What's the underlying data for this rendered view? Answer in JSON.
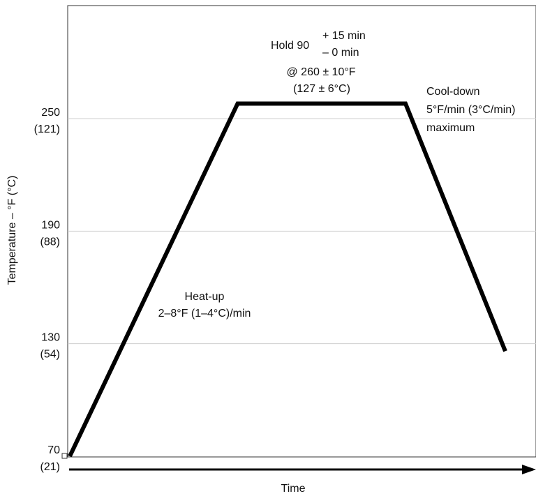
{
  "chart_data": {
    "type": "line",
    "xlabel": "Time",
    "ylabel": "Temperature – °F (°C)",
    "ylim": [
      70,
      270
    ],
    "y_ticks": [
      {
        "value": 70,
        "f": "70",
        "c": "(21)"
      },
      {
        "value": 130,
        "f": "130",
        "c": "(54)"
      },
      {
        "value": 190,
        "f": "190",
        "c": "(88)"
      },
      {
        "value": 250,
        "f": "250",
        "c": "(121)"
      }
    ],
    "grid": true,
    "line_color": "#000000",
    "grid_color": "#cfcfcf",
    "series": [
      {
        "x_relative": [
          0,
          0.37,
          0.74,
          0.96
        ],
        "y": [
          70,
          258,
          258,
          126
        ]
      }
    ],
    "annotations": {
      "hold_prefix": "Hold 90",
      "hold_plus": "+ 15 min",
      "hold_minus": "– 0 min",
      "hold_temp_f": "@ 260 ± 10°F",
      "hold_temp_c": "(127 ± 6°C)",
      "cool_line1": "Cool-down",
      "cool_line2": "5°F/min (3°C/min)",
      "cool_line3": "maximum",
      "heat_line1": "Heat-up",
      "heat_line2": "2–8°F (1–4°C)/min"
    }
  }
}
